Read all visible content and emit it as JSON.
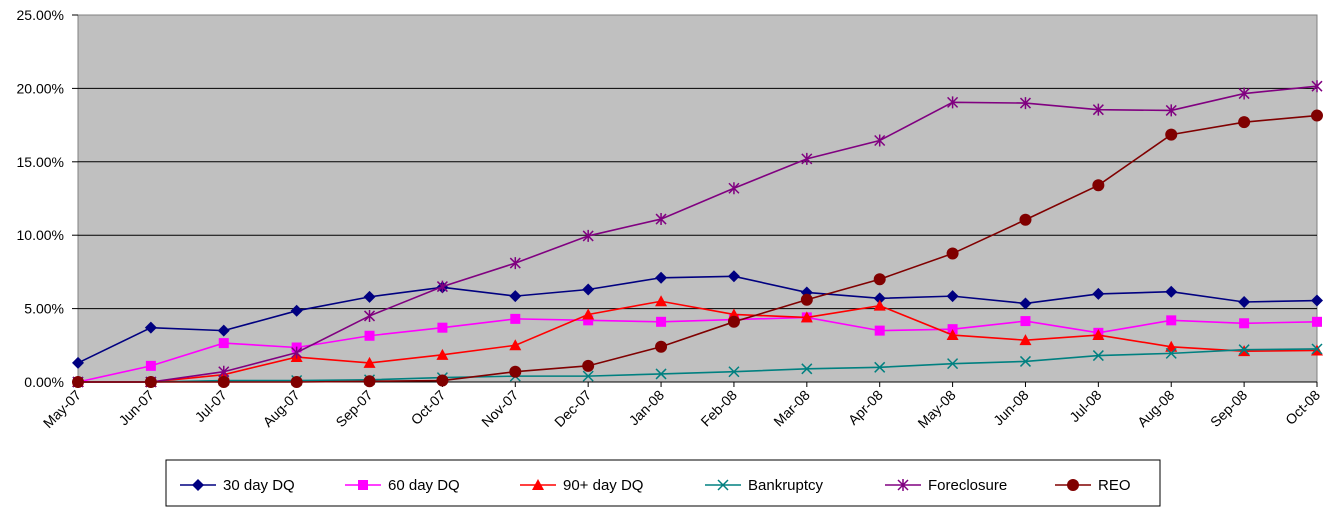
{
  "chart_data": {
    "type": "line",
    "title": "",
    "xlabel": "",
    "ylabel": "",
    "categories": [
      "May-07",
      "Jun-07",
      "Jul-07",
      "Aug-07",
      "Sep-07",
      "Oct-07",
      "Nov-07",
      "Dec-07",
      "Jan-08",
      "Feb-08",
      "Mar-08",
      "Apr-08",
      "May-08",
      "Jun-08",
      "Jul-08",
      "Aug-08",
      "Sep-08",
      "Oct-08"
    ],
    "y_ticks": [
      "0.00%",
      "5.00%",
      "10.00%",
      "15.00%",
      "20.00%",
      "25.00%"
    ],
    "ylim": [
      0,
      25
    ],
    "grid": "horizontal",
    "plot_background": "#c0c0c0",
    "legend_position": "bottom",
    "series": [
      {
        "name": "30 day DQ",
        "color": "#000080",
        "marker": "diamond",
        "values": [
          1.3,
          3.7,
          3.5,
          4.85,
          5.8,
          6.45,
          5.85,
          6.3,
          7.1,
          7.2,
          6.1,
          5.7,
          5.85,
          5.35,
          6.0,
          6.15,
          5.45,
          5.55
        ]
      },
      {
        "name": "60 day DQ",
        "color": "#ff00ff",
        "marker": "square",
        "values": [
          0.0,
          1.1,
          2.65,
          2.35,
          3.15,
          3.7,
          4.3,
          4.2,
          4.1,
          4.25,
          4.4,
          3.5,
          3.6,
          4.15,
          3.35,
          4.2,
          4.0,
          4.1
        ]
      },
      {
        "name": "90+ day DQ",
        "color": "#ff0000",
        "marker": "triangle",
        "values": [
          0.0,
          0.0,
          0.5,
          1.7,
          1.3,
          1.85,
          2.5,
          4.6,
          5.5,
          4.6,
          4.4,
          5.2,
          3.2,
          2.85,
          3.2,
          2.4,
          2.1,
          2.15
        ]
      },
      {
        "name": "Bankruptcy",
        "color": "#008080",
        "marker": "x",
        "values": [
          0.0,
          0.0,
          0.1,
          0.1,
          0.15,
          0.3,
          0.4,
          0.4,
          0.55,
          0.7,
          0.9,
          1.0,
          1.25,
          1.4,
          1.8,
          1.95,
          2.2,
          2.25
        ]
      },
      {
        "name": "Foreclosure",
        "color": "#800080",
        "marker": "star",
        "values": [
          0.0,
          0.0,
          0.7,
          2.0,
          4.5,
          6.5,
          8.1,
          9.95,
          11.1,
          13.2,
          15.2,
          16.45,
          19.05,
          19.0,
          18.55,
          18.5,
          19.65,
          20.15
        ]
      },
      {
        "name": "REO",
        "color": "#800000",
        "marker": "circle",
        "values": [
          0.0,
          0.0,
          0.0,
          0.0,
          0.05,
          0.1,
          0.7,
          1.1,
          2.4,
          4.1,
          5.6,
          7.0,
          8.75,
          11.05,
          13.4,
          16.85,
          17.7,
          18.15
        ]
      }
    ]
  }
}
